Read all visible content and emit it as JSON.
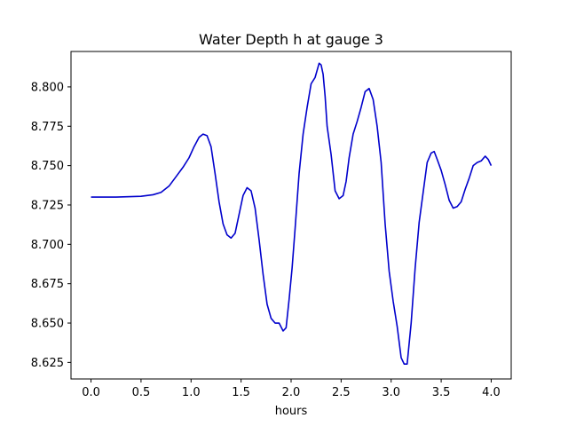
{
  "chart_data": {
    "type": "line",
    "title": "Water Depth h at gauge 3",
    "xlabel": "hours",
    "ylabel": "",
    "xlim": [
      -0.2,
      4.2
    ],
    "ylim": [
      8.6145,
      8.8225
    ],
    "xticks": [
      0.0,
      0.5,
      1.0,
      1.5,
      2.0,
      2.5,
      3.0,
      3.5,
      4.0
    ],
    "xtick_labels": [
      "0.0",
      "0.5",
      "1.0",
      "1.5",
      "2.0",
      "2.5",
      "3.0",
      "3.5",
      "4.0"
    ],
    "yticks": [
      8.625,
      8.65,
      8.675,
      8.7,
      8.725,
      8.75,
      8.775,
      8.8
    ],
    "ytick_labels": [
      "8.625",
      "8.650",
      "8.675",
      "8.700",
      "8.725",
      "8.750",
      "8.775",
      "8.800"
    ],
    "grid": false,
    "series": [
      {
        "name": "",
        "color": "#0000cc",
        "x": [
          0.0,
          0.25,
          0.5,
          0.62,
          0.7,
          0.78,
          0.85,
          0.92,
          0.98,
          1.03,
          1.08,
          1.12,
          1.16,
          1.2,
          1.24,
          1.28,
          1.32,
          1.36,
          1.4,
          1.44,
          1.48,
          1.52,
          1.56,
          1.6,
          1.64,
          1.68,
          1.72,
          1.76,
          1.8,
          1.84,
          1.88,
          1.92,
          1.95,
          1.98,
          2.01,
          2.04,
          2.08,
          2.12,
          2.16,
          2.2,
          2.24,
          2.28,
          2.3,
          2.32,
          2.34,
          2.36,
          2.4,
          2.44,
          2.48,
          2.52,
          2.55,
          2.58,
          2.62,
          2.66,
          2.7,
          2.74,
          2.78,
          2.82,
          2.86,
          2.9,
          2.94,
          2.98,
          3.02,
          3.06,
          3.1,
          3.13,
          3.16,
          3.2,
          3.24,
          3.28,
          3.32,
          3.36,
          3.4,
          3.43,
          3.46,
          3.5,
          3.54,
          3.58,
          3.62,
          3.66,
          3.7,
          3.74,
          3.78,
          3.82,
          3.86,
          3.9,
          3.94,
          3.97,
          4.0
        ],
        "y": [
          8.73,
          8.73,
          8.7305,
          8.7315,
          8.733,
          8.737,
          8.743,
          8.749,
          8.755,
          8.762,
          8.768,
          8.77,
          8.769,
          8.762,
          8.745,
          8.727,
          8.713,
          8.706,
          8.704,
          8.707,
          8.719,
          8.731,
          8.736,
          8.734,
          8.723,
          8.703,
          8.681,
          8.662,
          8.653,
          8.65,
          8.65,
          8.645,
          8.647,
          8.665,
          8.685,
          8.71,
          8.745,
          8.77,
          8.787,
          8.802,
          8.806,
          8.815,
          8.814,
          8.808,
          8.794,
          8.775,
          8.757,
          8.734,
          8.729,
          8.731,
          8.74,
          8.755,
          8.77,
          8.778,
          8.787,
          8.797,
          8.799,
          8.792,
          8.775,
          8.752,
          8.713,
          8.683,
          8.664,
          8.648,
          8.628,
          8.624,
          8.624,
          8.65,
          8.685,
          8.714,
          8.733,
          8.752,
          8.758,
          8.759,
          8.754,
          8.747,
          8.738,
          8.728,
          8.723,
          8.724,
          8.727,
          8.735,
          8.742,
          8.75,
          8.752,
          8.753,
          8.756,
          8.754,
          8.75
        ]
      }
    ]
  }
}
